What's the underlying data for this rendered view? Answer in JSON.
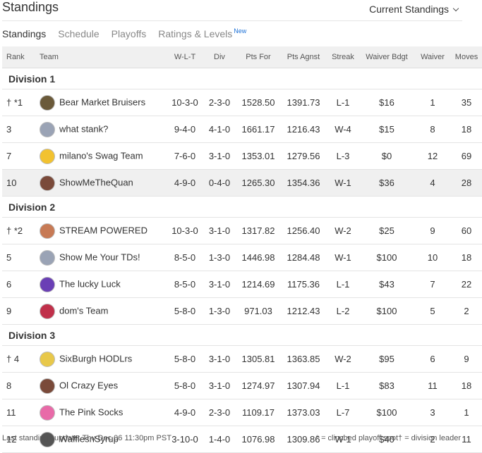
{
  "header": {
    "title": "Standings",
    "dropdown": "Current Standings"
  },
  "tabs": [
    "Standings",
    "Schedule",
    "Playoffs",
    "Ratings & Levels"
  ],
  "tab_badge": "New",
  "table": {
    "columns": [
      "Rank",
      "Team",
      "W-L-T",
      "Div",
      "Pts For",
      "Pts Agnst",
      "Streak",
      "Waiver Bdgt",
      "Waiver",
      "Moves"
    ],
    "divisions": [
      {
        "name": "Division 1",
        "rows": [
          [
            "† *1",
            "Bear Market Bruisers",
            "10-3-0",
            "2-3-0",
            "1528.50",
            "1391.73",
            "L-1",
            "$16",
            "1",
            "35"
          ],
          [
            "3",
            "what stank?",
            "9-4-0",
            "4-1-0",
            "1661.17",
            "1216.43",
            "W-4",
            "$15",
            "8",
            "18"
          ],
          [
            "7",
            "milano's Swag Team",
            "7-6-0",
            "3-1-0",
            "1353.01",
            "1279.56",
            "L-3",
            "$0",
            "12",
            "69"
          ],
          [
            "10",
            "ShowMeTheQuan",
            "4-9-0",
            "0-4-0",
            "1265.30",
            "1354.36",
            "W-1",
            "$36",
            "4",
            "28"
          ]
        ]
      },
      {
        "name": "Division 2",
        "rows": [
          [
            "† *2",
            "STREAM POWERED",
            "10-3-0",
            "3-1-0",
            "1317.82",
            "1256.40",
            "W-2",
            "$25",
            "9",
            "60"
          ],
          [
            "5",
            "Show Me Your TDs!",
            "8-5-0",
            "1-3-0",
            "1446.98",
            "1284.48",
            "W-1",
            "$100",
            "10",
            "18"
          ],
          [
            "6",
            "The lucky Luck",
            "8-5-0",
            "3-1-0",
            "1214.69",
            "1175.36",
            "L-1",
            "$43",
            "7",
            "22"
          ],
          [
            "9",
            "dom's Team",
            "5-8-0",
            "1-3-0",
            "971.03",
            "1212.43",
            "L-2",
            "$100",
            "5",
            "2"
          ]
        ]
      },
      {
        "name": "Division 3",
        "rows": [
          [
            "† 4",
            "SixBurgh HODLrs",
            "5-8-0",
            "3-1-0",
            "1305.81",
            "1363.85",
            "W-2",
            "$95",
            "6",
            "9"
          ],
          [
            "8",
            "Ol Crazy Eyes",
            "5-8-0",
            "3-1-0",
            "1274.97",
            "1307.94",
            "L-1",
            "$83",
            "11",
            "18"
          ],
          [
            "11",
            "The Pink Socks",
            "4-9-0",
            "2-3-0",
            "1109.17",
            "1373.03",
            "L-7",
            "$100",
            "3",
            "1"
          ],
          [
            "12",
            "WafflesnSyrup",
            "3-10-0",
            "1-4-0",
            "1076.98",
            "1309.86",
            "W-1",
            "$40",
            "2",
            "11"
          ]
        ]
      }
    ]
  },
  "footer": {
    "updated": "Last standings update: Thu Dec 06 11:30pm PST",
    "legend": "* = clinched playoff spot† = division leader"
  }
}
